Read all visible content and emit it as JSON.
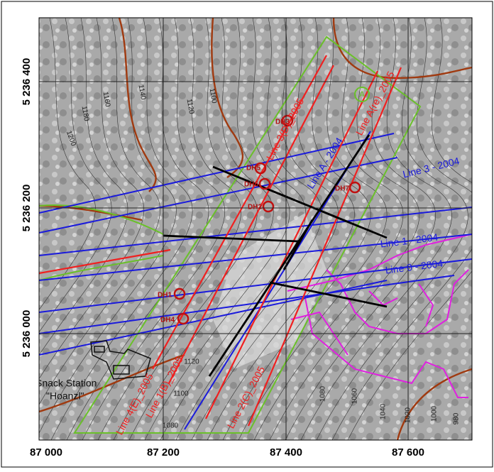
{
  "grid_labels": {
    "x": [
      "87 000",
      "87 200",
      "87 400",
      "87 600"
    ],
    "y": [
      "5 236 400",
      "5 236 200",
      "5 236 000"
    ]
  },
  "survey_lines": [
    "Line 3 - 2004",
    "Line 1 - 2004",
    "Line 0 - 2004",
    "Line A - 2004",
    "Line 3(D)_2005",
    "Line A(re)_2005",
    "Line 4(E)_2005",
    "Line 1(B)_2005",
    "Line 2(C)_2005"
  ],
  "drill_holes": [
    "DH3",
    "DH5",
    "DH6",
    "DH2",
    "DH7",
    "DH1",
    "DH4"
  ],
  "contour_labels": [
    "1200",
    "1180",
    "1160",
    "1140",
    "1120",
    "1100",
    "1120",
    "1100",
    "1080",
    "1080",
    "1060",
    "1040",
    "1020",
    "1000",
    "980"
  ],
  "marker": "A",
  "place": {
    "name": "Snack Station",
    "subname": "\"Hoanzl\""
  }
}
